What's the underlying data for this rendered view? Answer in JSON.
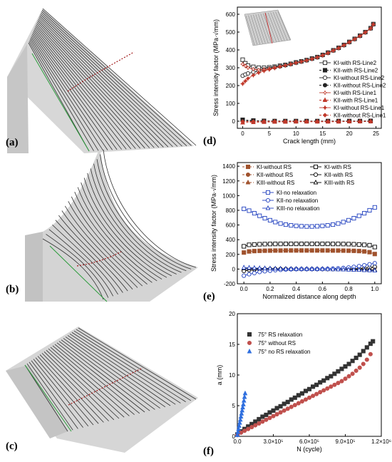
{
  "panels": {
    "a": "(a)",
    "b": "(b)",
    "c": "(c)",
    "d": "(d)",
    "e": "(e)",
    "f": "(f)"
  },
  "chart_data": [
    {
      "type": "line",
      "id": "d",
      "xlabel": "Crack length (mm)",
      "ylabel": "Stress intensity factor (MPa·√mm)",
      "xlim": [
        -1,
        26
      ],
      "ylim": [
        -40,
        640
      ],
      "xticks": [
        0,
        5,
        10,
        15,
        20,
        25
      ],
      "yticks": [
        0,
        100,
        200,
        300,
        400,
        500,
        600
      ],
      "legend_position": "right",
      "series": [
        {
          "name": "KI-with RS-Line2",
          "color": "#222222",
          "marker": "square-open",
          "dash": "solid",
          "x": [
            0,
            0.5,
            1,
            2,
            3,
            4,
            5,
            6,
            7,
            8,
            9,
            10,
            11,
            12,
            13,
            14,
            15,
            16,
            17,
            18,
            19,
            20,
            21,
            22,
            23,
            24,
            24.5
          ],
          "y": [
            345,
            325,
            312,
            305,
            300,
            300,
            302,
            306,
            311,
            316,
            322,
            330,
            336,
            343,
            352,
            360,
            372,
            385,
            398,
            412,
            428,
            445,
            462,
            480,
            500,
            522,
            545
          ]
        },
        {
          "name": "KII-with RS-Line2",
          "color": "#222222",
          "marker": "square",
          "dash": "dash",
          "x": [
            0,
            2,
            4,
            6,
            8,
            10,
            12,
            14,
            16,
            18,
            20,
            22,
            24
          ],
          "y": [
            8,
            4,
            2,
            1,
            1,
            1,
            1,
            1,
            1,
            1,
            1,
            1,
            2
          ]
        },
        {
          "name": "KI-without RS-Line2",
          "color": "#222222",
          "marker": "circle-open",
          "dash": "solid",
          "x": [
            0,
            0.5,
            1,
            2,
            3,
            4,
            5,
            6,
            7,
            8,
            9,
            10,
            11,
            12,
            13,
            14,
            15,
            16,
            17,
            18,
            19,
            20,
            21,
            22,
            23,
            24,
            24.5
          ],
          "y": [
            255,
            262,
            268,
            276,
            283,
            290,
            296,
            302,
            308,
            314,
            320,
            328,
            334,
            341,
            350,
            358,
            370,
            383,
            396,
            410,
            426,
            443,
            460,
            478,
            498,
            520,
            543
          ]
        },
        {
          "name": "KII-without RS-Line2",
          "color": "#222222",
          "marker": "circle",
          "dash": "dash",
          "x": [
            0,
            2,
            4,
            6,
            8,
            10,
            12,
            14,
            16,
            18,
            20,
            22,
            24
          ],
          "y": [
            3,
            2,
            1,
            1,
            0,
            0,
            0,
            0,
            0,
            0,
            0,
            0,
            1
          ]
        },
        {
          "name": "KI-with RS-Line1",
          "color": "#c0392b",
          "marker": "star",
          "dash": "solid",
          "x": [
            0,
            0.5,
            1,
            2,
            3,
            4,
            5,
            6,
            7,
            8,
            9,
            10,
            11,
            12,
            13,
            14,
            15,
            16,
            17,
            18,
            19,
            20,
            21,
            22,
            23,
            24,
            24.5
          ],
          "y": [
            320,
            310,
            300,
            292,
            288,
            290,
            294,
            300,
            307,
            313,
            320,
            328,
            335,
            342,
            350,
            359,
            370,
            383,
            397,
            411,
            427,
            444,
            461,
            479,
            499,
            521,
            544
          ]
        },
        {
          "name": "KII-with RS-Line1",
          "color": "#c0392b",
          "marker": "triangle",
          "dash": "dash",
          "x": [
            0,
            2,
            4,
            6,
            8,
            10,
            12,
            14,
            16,
            18,
            20,
            22,
            24
          ],
          "y": [
            -8,
            -6,
            -5,
            -4,
            -4,
            -3,
            -3,
            -3,
            -3,
            -3,
            -2,
            -2,
            -2
          ]
        },
        {
          "name": "KI-without RS-Line1",
          "color": "#c0392b",
          "marker": "star-filled",
          "dash": "solid",
          "x": [
            0,
            0.5,
            1,
            2,
            3,
            4,
            5,
            6,
            7,
            8,
            9,
            10,
            11,
            12,
            13,
            14,
            15,
            16,
            17,
            18,
            19,
            20,
            21,
            22,
            23,
            24,
            24.5
          ],
          "y": [
            210,
            225,
            240,
            258,
            272,
            282,
            290,
            298,
            306,
            313,
            320,
            327,
            334,
            341,
            349,
            358,
            369,
            382,
            396,
            410,
            426,
            443,
            460,
            478,
            498,
            520,
            543
          ]
        },
        {
          "name": "KII-without RS-Line1",
          "color": "#c0392b",
          "marker": "diamond",
          "dash": "dash",
          "x": [
            0,
            2,
            4,
            6,
            8,
            10,
            12,
            14,
            16,
            18,
            20,
            22,
            24
          ],
          "y": [
            -2,
            -2,
            -1,
            -1,
            -1,
            -1,
            -1,
            -1,
            -1,
            -1,
            -1,
            -1,
            -1
          ]
        }
      ]
    },
    {
      "type": "line",
      "id": "e",
      "xlabel": "Normalized distance along depth",
      "ylabel": "Stress intensity factor (MPa·√mm)",
      "xlim": [
        -0.05,
        1.05
      ],
      "ylim": [
        -200,
        1450
      ],
      "xticks": [
        0.0,
        0.2,
        0.4,
        0.6,
        0.8,
        1.0
      ],
      "yticks": [
        -200,
        0,
        200,
        400,
        600,
        800,
        1000,
        1200,
        1400
      ],
      "legend_position": "top",
      "x": [
        0.0,
        0.04,
        0.08,
        0.12,
        0.16,
        0.2,
        0.24,
        0.28,
        0.32,
        0.36,
        0.4,
        0.44,
        0.48,
        0.52,
        0.56,
        0.6,
        0.64,
        0.68,
        0.72,
        0.76,
        0.8,
        0.84,
        0.88,
        0.92,
        0.96,
        1.0
      ],
      "series": [
        {
          "name": "KI-without RS",
          "color": "#a0522d",
          "marker": "square",
          "dash": "dash",
          "y": [
            225,
            240,
            245,
            248,
            250,
            251,
            252,
            252,
            253,
            253,
            253,
            253,
            253,
            253,
            253,
            253,
            253,
            252,
            252,
            251,
            250,
            248,
            245,
            240,
            230,
            205
          ]
        },
        {
          "name": "KII-without RS",
          "color": "#a0522d",
          "marker": "circle",
          "dash": "dash",
          "y": [
            -20,
            -10,
            -5,
            -3,
            -2,
            -1,
            0,
            0,
            0,
            0,
            0,
            0,
            0,
            0,
            0,
            0,
            0,
            0,
            0,
            1,
            2,
            3,
            5,
            10,
            15,
            25
          ]
        },
        {
          "name": "KIII-without RS",
          "color": "#a0522d",
          "marker": "triangle",
          "dash": "dash",
          "y": [
            10,
            8,
            6,
            5,
            4,
            3,
            2,
            1,
            1,
            0,
            0,
            0,
            0,
            0,
            0,
            0,
            0,
            -1,
            -1,
            -2,
            -3,
            -4,
            -5,
            -6,
            -8,
            -10
          ]
        },
        {
          "name": "KI-with RS",
          "color": "#000000",
          "marker": "square-open",
          "dash": "solid",
          "y": [
            310,
            330,
            335,
            338,
            340,
            341,
            342,
            342,
            343,
            343,
            343,
            343,
            343,
            343,
            343,
            343,
            343,
            342,
            342,
            341,
            340,
            338,
            335,
            330,
            325,
            300
          ]
        },
        {
          "name": "KII-with RS",
          "color": "#000000",
          "marker": "circle-open",
          "dash": "solid",
          "y": [
            -25,
            -12,
            -6,
            -3,
            -2,
            -1,
            0,
            0,
            0,
            0,
            0,
            0,
            0,
            0,
            0,
            0,
            0,
            0,
            0,
            1,
            2,
            3,
            6,
            12,
            18,
            30
          ]
        },
        {
          "name": "KIII-with RS",
          "color": "#000000",
          "marker": "triangle-open",
          "dash": "solid",
          "y": [
            12,
            9,
            7,
            5,
            4,
            3,
            2,
            1,
            1,
            0,
            0,
            0,
            0,
            0,
            0,
            0,
            0,
            -1,
            -1,
            -2,
            -3,
            -4,
            -5,
            -7,
            -9,
            -12
          ]
        },
        {
          "name": "KI-no relaxation",
          "color": "#1f3fbf",
          "marker": "square-open",
          "dash": "solid",
          "y": [
            820,
            795,
            760,
            725,
            692,
            665,
            640,
            620,
            605,
            595,
            588,
            583,
            580,
            580,
            583,
            588,
            595,
            605,
            620,
            640,
            665,
            692,
            725,
            760,
            800,
            840
          ]
        },
        {
          "name": "KII-no relaxation",
          "color": "#1f3fbf",
          "marker": "circle-open",
          "dash": "solid",
          "y": [
            -90,
            -70,
            -55,
            -40,
            -30,
            -22,
            -15,
            -10,
            -6,
            -3,
            -1,
            0,
            0,
            0,
            0,
            1,
            3,
            6,
            10,
            15,
            22,
            30,
            40,
            52,
            65,
            80
          ]
        },
        {
          "name": "KIII-no relaxation",
          "color": "#1f3fbf",
          "marker": "triangle-open",
          "dash": "solid",
          "y": [
            20,
            18,
            15,
            12,
            10,
            8,
            6,
            4,
            3,
            2,
            1,
            0,
            0,
            0,
            0,
            -1,
            -2,
            -3,
            -4,
            -6,
            -8,
            -10,
            -12,
            -15,
            -18,
            -20
          ]
        }
      ]
    },
    {
      "type": "scatter",
      "id": "f",
      "xlabel": "N (cycle)",
      "ylabel": "a (mm)",
      "xlim": [
        0,
        1200000
      ],
      "ylim": [
        0,
        20
      ],
      "xtick_labels": [
        "0.0",
        "3.0×10⁵",
        "6.0×10⁵",
        "9.0×10⁵",
        "1.2×10⁶"
      ],
      "xtick_values": [
        0,
        300000,
        600000,
        900000,
        1200000
      ],
      "yticks": [
        0,
        5,
        10,
        15,
        20
      ],
      "legend_position": "top-left",
      "series": [
        {
          "name": "75° RS relaxation",
          "color": "#333333",
          "marker": "square",
          "x": [
            0,
            30000,
            60000,
            90000,
            120000,
            150000,
            180000,
            210000,
            240000,
            270000,
            300000,
            330000,
            360000,
            390000,
            420000,
            450000,
            480000,
            510000,
            540000,
            570000,
            600000,
            630000,
            660000,
            690000,
            720000,
            750000,
            780000,
            810000,
            840000,
            870000,
            900000,
            930000,
            960000,
            990000,
            1020000,
            1050000,
            1080000,
            1110000,
            1130000
          ],
          "y": [
            0.3,
            0.8,
            1.2,
            1.6,
            2.0,
            2.4,
            2.8,
            3.2,
            3.5,
            3.9,
            4.2,
            4.6,
            4.9,
            5.3,
            5.6,
            6.0,
            6.3,
            6.7,
            7.0,
            7.4,
            7.7,
            8.1,
            8.4,
            8.8,
            9.1,
            9.5,
            9.8,
            10.2,
            10.6,
            11.0,
            11.4,
            11.8,
            12.3,
            12.8,
            13.3,
            13.9,
            14.5,
            15.1,
            15.5
          ]
        },
        {
          "name": "75° without RS",
          "color": "#c0504d",
          "marker": "circle",
          "x": [
            0,
            30000,
            60000,
            90000,
            120000,
            150000,
            180000,
            210000,
            240000,
            270000,
            300000,
            330000,
            360000,
            390000,
            420000,
            450000,
            480000,
            510000,
            540000,
            570000,
            600000,
            630000,
            660000,
            690000,
            720000,
            750000,
            780000,
            810000,
            840000,
            870000,
            900000,
            930000,
            960000,
            990000,
            1020000,
            1050000,
            1080000,
            1110000
          ],
          "y": [
            0.2,
            0.6,
            0.9,
            1.2,
            1.5,
            1.8,
            2.1,
            2.4,
            2.7,
            3.0,
            3.3,
            3.6,
            3.9,
            4.2,
            4.5,
            4.8,
            5.1,
            5.4,
            5.7,
            6.0,
            6.3,
            6.6,
            6.9,
            7.2,
            7.5,
            7.8,
            8.1,
            8.4,
            8.7,
            9.0,
            9.4,
            9.8,
            10.2,
            10.7,
            11.2,
            11.8,
            12.5,
            13.4
          ]
        },
        {
          "name": "75° no RS relaxation",
          "color": "#2f6fdf",
          "marker": "triangle",
          "x": [
            0,
            5000,
            10000,
            15000,
            20000,
            25000,
            30000,
            35000,
            40000,
            45000,
            50000,
            55000,
            60000,
            65000
          ],
          "y": [
            0.2,
            0.7,
            1.2,
            1.7,
            2.2,
            2.7,
            3.2,
            3.7,
            4.2,
            4.7,
            5.2,
            5.8,
            6.4,
            7.0
          ]
        }
      ]
    }
  ]
}
